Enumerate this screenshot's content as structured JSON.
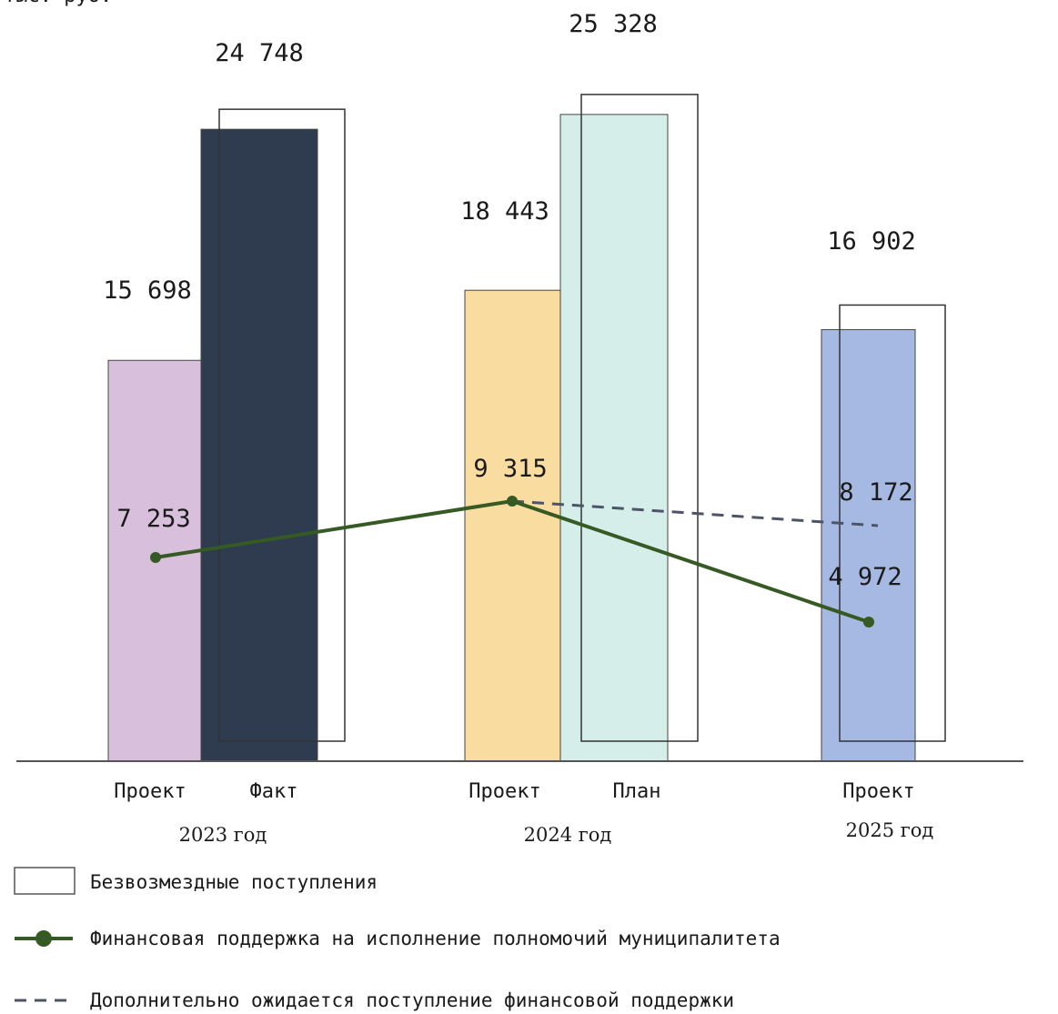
{
  "header_fragment": "тыс. руб.",
  "colors": {
    "bar_2023_project": "#d8bfdc",
    "bar_2023_fact": "#2f3b4e",
    "bar_2024_project": "#f9dca0",
    "bar_2024_plan": "#d6eeea",
    "bar_2025_project": "#a6b9e2",
    "support_line": "#355a23",
    "expected_line": "#4c5468",
    "outline": "#333333"
  },
  "chart_data": {
    "type": "bar",
    "groups": [
      {
        "year_label": "2023 год",
        "bars": [
          {
            "category": "Проект",
            "value": 15698,
            "value_label": "15 698",
            "color": "#d8bfdc"
          },
          {
            "category": "Факт",
            "value": 24748,
            "value_label": "24 748",
            "color": "#2f3b4e"
          }
        ]
      },
      {
        "year_label": "2024 год",
        "bars": [
          {
            "category": "Проект",
            "value": 18443,
            "value_label": "18 443",
            "color": "#f9dca0"
          },
          {
            "category": "План",
            "value": 25328,
            "value_label": "25 328",
            "color": "#d6eeea"
          }
        ]
      },
      {
        "year_label": "2025 год",
        "bars": [
          {
            "category": "Проект",
            "value": 16902,
            "value_label": "16 902",
            "color": "#a6b9e2"
          }
        ]
      }
    ],
    "outline_series": {
      "name": "Безвозмездные поступления",
      "points": [
        {
          "year": "2023 год",
          "value": 24748
        },
        {
          "year": "2024 год",
          "value": 25328
        },
        {
          "year": "2025 год",
          "value": 16902
        }
      ]
    },
    "line_series": [
      {
        "name": "Финансовая поддержка на исполнение полномочий муниципалитета",
        "style": "solid",
        "color": "#355a23",
        "points": [
          {
            "year": "2023 год",
            "value": 7253,
            "label": "7 253"
          },
          {
            "year": "2024 год",
            "value": 9315,
            "label": "9 315"
          },
          {
            "year": "2025 год",
            "value": 4972,
            "label": "4 972"
          }
        ]
      },
      {
        "name": "Дополнительно ожидается поступление финансовой поддержки",
        "style": "dashed",
        "color": "#4c5468",
        "points": [
          {
            "year": "2024 год",
            "value": 9315
          },
          {
            "year": "2025 год",
            "value": 8172,
            "label": "8 172"
          }
        ]
      }
    ],
    "ylim": [
      0,
      26000
    ],
    "grid": false,
    "legend_position": "bottom"
  }
}
